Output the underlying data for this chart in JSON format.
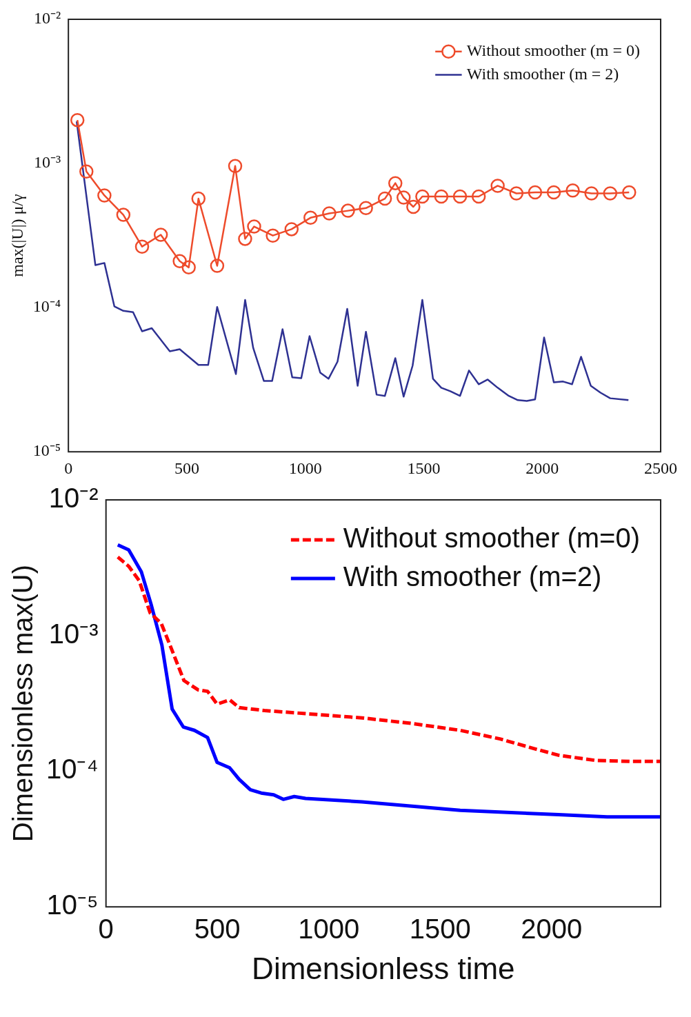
{
  "chart_data": [
    {
      "type": "line",
      "ylabel": "max(|U|) μ/γ",
      "log": "y",
      "legend": "top right",
      "grid": false,
      "xlim": [
        0,
        2500
      ],
      "xticks": [
        0,
        500,
        1000,
        1500,
        2000,
        2500
      ],
      "ylim": [
        1e-05,
        0.01
      ],
      "yticks": [
        {
          "value": 1e-05,
          "label": "10⁻⁵"
        },
        {
          "value": 0.0001,
          "label": "10⁻⁴"
        },
        {
          "value": 0.001,
          "label": "10⁻³"
        },
        {
          "value": 0.01,
          "label": "10⁻²"
        }
      ],
      "series": [
        {
          "name": "Without smoother (m = 0)",
          "color": "#ee4b2b",
          "marker": "circle",
          "line_style": "solid",
          "x": [
            38,
            76,
            152,
            232,
            311,
            390,
            470,
            508,
            549,
            628,
            704,
            746,
            784,
            863,
            942,
            1022,
            1101,
            1180,
            1256,
            1336,
            1380,
            1415,
            1456,
            1494,
            1574,
            1653,
            1732,
            1812,
            1891,
            1970,
            2049,
            2129,
            2208,
            2287,
            2367
          ],
          "values": [
            0.002,
            0.00088,
            0.0006,
            0.00044,
            0.000265,
            0.00032,
            0.00021,
            0.00019,
            0.00057,
            0.000195,
            0.00096,
            0.0003,
            0.000365,
            0.000316,
            0.00035,
            0.00042,
            0.00045,
            0.00047,
            0.00049,
            0.00057,
            0.00073,
            0.00058,
            0.0005,
            0.00059,
            0.00059,
            0.00059,
            0.00059,
            0.0007,
            0.00062,
            0.00063,
            0.00063,
            0.00065,
            0.00062,
            0.00062,
            0.00063
          ]
        },
        {
          "name": "With smoother (m = 2)",
          "color": "#2e3192",
          "marker": "none",
          "line_style": "solid",
          "x": [
            35,
            114,
            152,
            194,
            232,
            273,
            311,
            352,
            428,
            470,
            549,
            590,
            628,
            707,
            746,
            780,
            825,
            860,
            904,
            945,
            983,
            1018,
            1063,
            1098,
            1136,
            1177,
            1221,
            1256,
            1301,
            1336,
            1380,
            1415,
            1453,
            1494,
            1539,
            1574,
            1612,
            1653,
            1691,
            1732,
            1770,
            1812,
            1859,
            1897,
            1935,
            1970,
            2008,
            2049,
            2088,
            2126,
            2164,
            2205,
            2246,
            2287,
            2364
          ],
          "values": [
            0.00196,
            0.000197,
            0.000204,
            0.000102,
            9.5e-05,
            9.3e-05,
            6.85e-05,
            7.2e-05,
            4.98e-05,
            5.14e-05,
            4e-05,
            4e-05,
            0.000101,
            3.46e-05,
            0.000113,
            5.26e-05,
            3.1e-05,
            3.1e-05,
            7.08e-05,
            3.28e-05,
            3.24e-05,
            6.34e-05,
            3.54e-05,
            3.21e-05,
            4.22e-05,
            9.8e-05,
            2.87e-05,
            6.8e-05,
            2.49e-05,
            2.44e-05,
            4.46e-05,
            2.41e-05,
            3.96e-05,
            0.000113,
            3.21e-05,
            2.78e-05,
            2.63e-05,
            2.44e-05,
            3.66e-05,
            2.94e-05,
            3.17e-05,
            2.78e-05,
            2.44e-05,
            2.28e-05,
            2.25e-05,
            2.31e-05,
            6.2e-05,
            3.03e-05,
            3.07e-05,
            2.94e-05,
            4.56e-05,
            2.87e-05,
            2.57e-05,
            2.35e-05,
            2.28e-05
          ]
        }
      ]
    },
    {
      "type": "line",
      "xlabel": "Dimensionless time",
      "ylabel": "Dimensionless max(U)",
      "log": "y",
      "legend": "top right",
      "grid": false,
      "xlim": [
        0,
        2490
      ],
      "xticks": [
        0,
        500,
        1000,
        1500,
        2000
      ],
      "ylim": [
        1e-05,
        0.01
      ],
      "yticks": [
        {
          "value": 1e-05,
          "label": "10⁻⁵"
        },
        {
          "value": 0.0001,
          "label": "10⁻⁴"
        },
        {
          "value": 0.001,
          "label": "10⁻³"
        },
        {
          "value": 0.01,
          "label": "10⁻²"
        }
      ],
      "series": [
        {
          "name": "Without smoother (m=0)",
          "color": "#ff0000",
          "marker": "none",
          "line_style": "dashed",
          "x": [
            53,
            102,
            149,
            198,
            248,
            291,
            350,
            413,
            456,
            499,
            555,
            598,
            711,
            1150,
            1371,
            1590,
            1768,
            1920,
            2032,
            2198,
            2363,
            2488
          ],
          "values": [
            0.00379,
            0.00324,
            0.00254,
            0.00147,
            0.00123,
            0.00082,
            0.000466,
            0.000398,
            0.000388,
            0.000312,
            0.000336,
            0.000294,
            0.00028,
            0.000247,
            0.000225,
            0.0002,
            0.000173,
            0.000147,
            0.000131,
            0.00012,
            0.000118,
            0.000118
          ]
        },
        {
          "name": "With smoother (m=2)",
          "color": "#0000ff",
          "marker": "none",
          "line_style": "solid",
          "x": [
            53,
            102,
            159,
            202,
            251,
            297,
            347,
            397,
            456,
            499,
            555,
            598,
            648,
            697,
            753,
            796,
            845,
            896,
            1150,
            1590,
            2032,
            2250,
            2488
          ],
          "values": [
            0.00466,
            0.00428,
            0.00294,
            0.00171,
            0.00085,
            0.000287,
            0.000212,
            0.0002,
            0.000177,
            0.000116,
            0.000106,
            8.7e-05,
            7.3e-05,
            6.9e-05,
            6.7e-05,
            6.2e-05,
            6.5e-05,
            6.3e-05,
            5.94e-05,
            5.14e-05,
            4.78e-05,
            4.61e-05,
            4.61e-05
          ]
        }
      ]
    }
  ]
}
